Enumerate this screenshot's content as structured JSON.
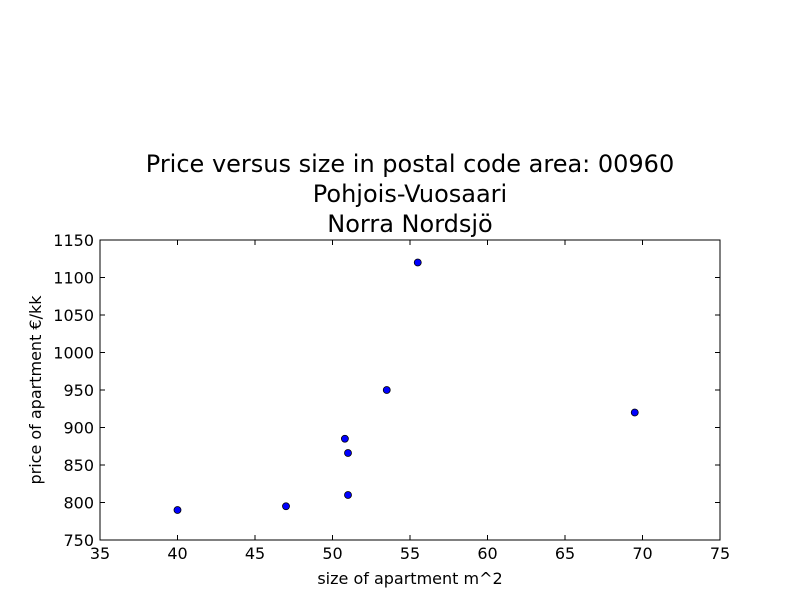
{
  "chart_data": {
    "type": "scatter",
    "title_lines": [
      "Price versus size in postal code area: 00960",
      "Pohjois-Vuosaari",
      "Norra  Nordsjö"
    ],
    "xlabel": "size of apartment m^2",
    "ylabel": "price of apartment €/kk",
    "xlim": [
      35,
      75
    ],
    "ylim": [
      750,
      1150
    ],
    "xticks": [
      35,
      40,
      45,
      50,
      55,
      60,
      65,
      70,
      75
    ],
    "yticks": [
      750,
      800,
      850,
      900,
      950,
      1000,
      1050,
      1100,
      1150
    ],
    "grid": false,
    "marker_color": "#0000ff",
    "points": [
      {
        "x": 40,
        "y": 790
      },
      {
        "x": 47,
        "y": 795
      },
      {
        "x": 51,
        "y": 810
      },
      {
        "x": 51,
        "y": 866
      },
      {
        "x": 50.8,
        "y": 885
      },
      {
        "x": 53.5,
        "y": 950
      },
      {
        "x": 55.5,
        "y": 1120
      },
      {
        "x": 69.5,
        "y": 920
      }
    ]
  }
}
